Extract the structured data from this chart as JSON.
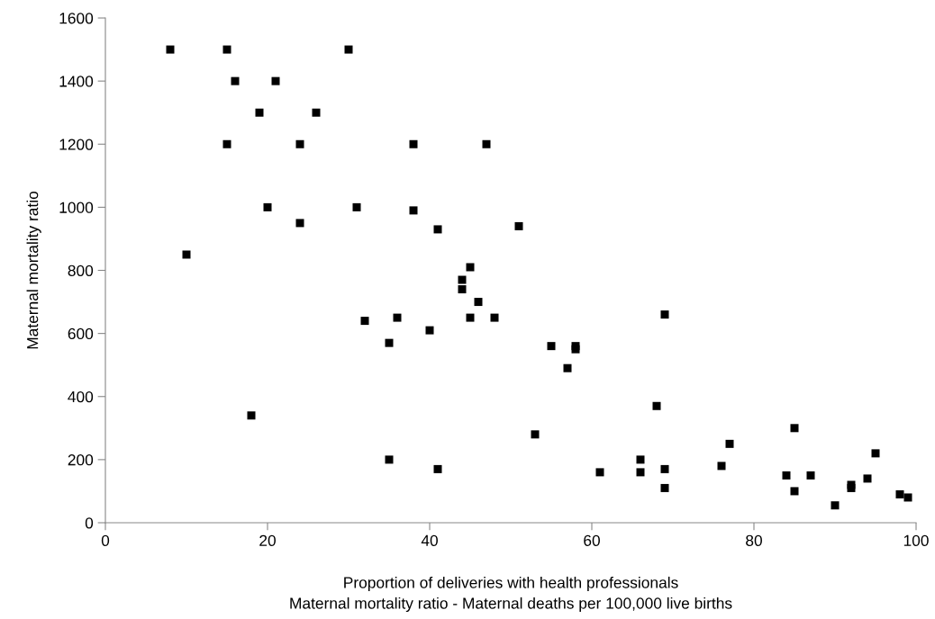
{
  "chart_data": {
    "type": "scatter",
    "xlabel": "Proportion of deliveries with health professionals",
    "ylabel": "Maternal mortality ratio",
    "annotations": [
      "Maternal mortality ratio - Maternal deaths per 100,000 live births"
    ],
    "x": [
      8,
      15,
      30,
      16,
      21,
      19,
      26,
      15,
      24,
      38,
      47,
      20,
      31,
      38,
      24,
      41,
      51,
      10,
      45,
      44,
      44,
      46,
      45,
      48,
      32,
      36,
      40,
      35,
      18,
      35,
      41,
      69,
      55,
      58,
      58,
      57,
      68,
      53,
      85,
      77,
      95,
      61,
      66,
      66,
      69,
      69,
      76,
      84,
      87,
      85,
      92,
      92,
      94,
      90,
      98,
      99
    ],
    "series": [
      {
        "color": "#000000",
        "values": [
          1500,
          1500,
          1500,
          1400,
          1400,
          1300,
          1300,
          1200,
          1200,
          1200,
          1200,
          1000,
          1000,
          990,
          950,
          930,
          940,
          850,
          810,
          770,
          740,
          700,
          650,
          650,
          640,
          650,
          610,
          570,
          340,
          200,
          170,
          660,
          560,
          560,
          550,
          490,
          370,
          280,
          300,
          250,
          220,
          160,
          160,
          200,
          170,
          110,
          180,
          150,
          150,
          100,
          120,
          110,
          140,
          55,
          90,
          80
        ]
      }
    ],
    "marker": "square",
    "grid": false,
    "legend": false,
    "xlim": [
      0,
      100
    ],
    "xticks": [
      0,
      20,
      40,
      60,
      80,
      100
    ],
    "ylim": [
      0,
      1600
    ],
    "yticks": [
      0,
      200,
      400,
      600,
      800,
      1000,
      1200,
      1400,
      1600
    ]
  }
}
